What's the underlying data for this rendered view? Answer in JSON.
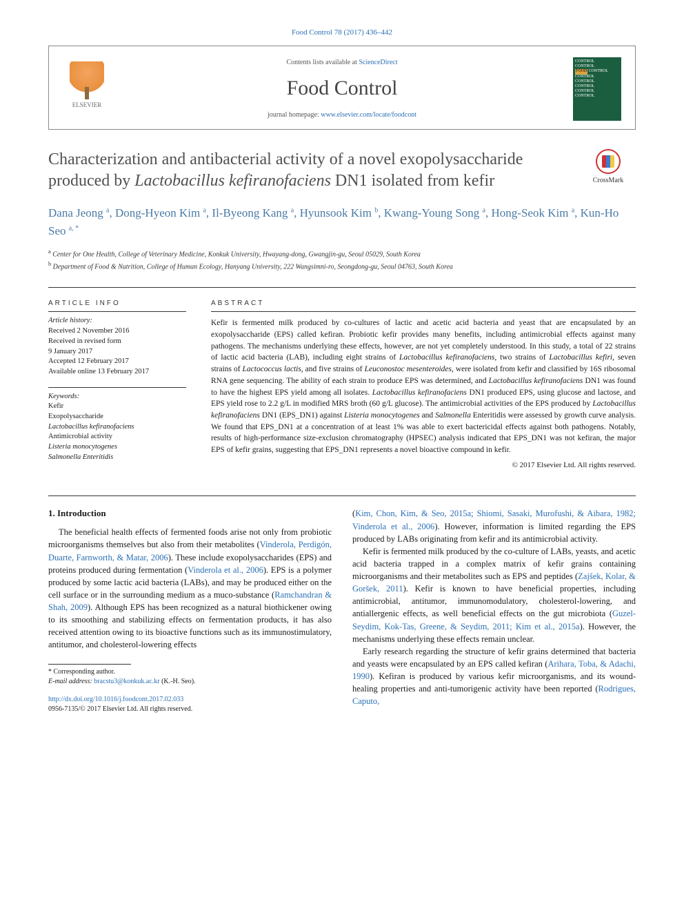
{
  "journal_ref": "Food Control 78 (2017) 436–442",
  "masthead": {
    "contents": "Contents lists available at ",
    "sciencedirect": "ScienceDirect",
    "journal_name": "Food Control",
    "homepage_label": "journal homepage: ",
    "homepage_url": "www.elsevier.com/locate/foodcont",
    "publisher": "ELSEVIER"
  },
  "cover": {
    "lines": [
      "CONTROL",
      "CONTROL",
      "FOOD CONTROL",
      "CONTROL",
      "CONTROL",
      "CONTROL",
      "CONTROL",
      "CONTROL"
    ]
  },
  "title_html": "Characterization and antibacterial activity of a novel exopolysaccharide produced by <em>Lactobacillus kefiranofaciens</em> DN1 isolated from kefir",
  "crossmark": "CrossMark",
  "authors_html": "Dana Jeong <sup>a</sup>, Dong-Hyeon Kim <sup>a</sup>, Il-Byeong Kang <sup>a</sup>, Hyunsook Kim <sup>b</sup>, Kwang-Young Song <sup>a</sup>, Hong-Seok Kim <sup>a</sup>, Kun-Ho Seo <sup>a, *</sup>",
  "affiliations": [
    {
      "sup": "a",
      "text": "Center for One Health, College of Veterinary Medicine, Konkuk University, Hwayang-dong, Gwangjin-gu, Seoul 05029, South Korea"
    },
    {
      "sup": "b",
      "text": "Department of Food & Nutrition, College of Human Ecology, Hanyang University, 222 Wangsimni-ro, Seongdong-gu, Seoul 04763, South Korea"
    }
  ],
  "article_info_head": "ARTICLE INFO",
  "abstract_head": "ABSTRACT",
  "history": {
    "label": "Article history:",
    "lines": [
      "Received 2 November 2016",
      "Received in revised form",
      "9 January 2017",
      "Accepted 12 February 2017",
      "Available online 13 February 2017"
    ]
  },
  "keywords": {
    "label": "Keywords:",
    "items": [
      "Kefir",
      "Exopolysaccharide",
      "Lactobacillus kefiranofaciens",
      "Antimicrobial activity",
      "Listeria monocytogenes",
      "Salmonella Enteritidis"
    ],
    "italic_idx": [
      2,
      4,
      5
    ]
  },
  "abstract_html": "Kefir is fermented milk produced by co-cultures of lactic and acetic acid bacteria and yeast that are encapsulated by an exopolysaccharide (EPS) called kefiran. Probiotic kefir provides many benefits, including antimicrobial effects against many pathogens. The mechanisms underlying these effects, however, are not yet completely understood. In this study, a total of 22 strains of lactic acid bacteria (LAB), including eight strains of <em>Lactobacillus kefiranofaciens</em>, two strains of <em>Lactobacillus kefiri</em>, seven strains of <em>Lactococcus lactis</em>, and five strains of <em>Leuconostoc mesenteroides</em>, were isolated from kefir and classified by 16S ribosomal RNA gene sequencing. The ability of each strain to produce EPS was determined, and <em>Lactobacillus kefiranofaciens</em> DN1 was found to have the highest EPS yield among all isolates. <em>Lactobacillus kefiranofaciens</em> DN1 produced EPS, using glucose and lactose, and EPS yield rose to 2.2 g/L in modified MRS broth (60 g/L glucose). The antimicrobial activities of the EPS produced by <em>Lactobacillus kefiranofaciens</em> DN1 (EPS_DN1) against <em>Listeria monocytogenes</em> and <em>Salmonella</em> Enteritidis were assessed by growth curve analysis. We found that EPS_DN1 at a concentration of at least 1% was able to exert bactericidal effects against both pathogens. Notably, results of high-performance size-exclusion chromatography (HPSEC) analysis indicated that EPS_DN1 was not kefiran, the major EPS of kefir grains, suggesting that EPS_DN1 represents a novel bioactive compound in kefir.",
  "copyright": "© 2017 Elsevier Ltd. All rights reserved.",
  "section_head": "1. Introduction",
  "col_left_html": "The beneficial health effects of fermented foods arise not only from probiotic microorganisms themselves but also from their metabolites (<span class=\"cite\">Vinderola, Perdigón, Duarte, Farnworth, & Matar, 2006</span>). These include exopolysaccharides (EPS) and proteins produced during fermentation (<span class=\"cite\">Vinderola et al., 2006</span>). EPS is a polymer produced by some lactic acid bacteria (LABs), and may be produced either on the cell surface or in the surrounding medium as a muco-substance (<span class=\"cite\">Ramchandran & Shah, 2009</span>). Although EPS has been recognized as a natural biothickener owing to its smoothing and stabilizing effects on fermentation products, it has also received attention owing to its bioactive functions such as its immunostimulatory, antitumor, and cholesterol-lowering effects",
  "col_right_p1_html": "(<span class=\"cite\">Kim, Chon, Kim, & Seo, 2015a; Shiomi, Sasaki, Murofushi, & Aibara, 1982; Vinderola et al., 2006</span>). However, information is limited regarding the EPS produced by LABs originating from kefir and its antimicrobial activity.",
  "col_right_p2_html": "Kefir is fermented milk produced by the co-culture of LABs, yeasts, and acetic acid bacteria trapped in a complex matrix of kefir grains containing microorganisms and their metabolites such as EPS and peptides (<span class=\"cite\">Zajšek, Kolar, & Goršek, 2011</span>). Kefir is known to have beneficial properties, including antimicrobial, antitumor, immunomodulatory, cholesterol-lowering, and antiallergenic effects, as well beneficial effects on the gut microbiota (<span class=\"cite\">Guzel-Seydim, Kok-Tas, Greene, & Seydim, 2011; Kim et al., 2015a</span>). However, the mechanisms underlying these effects remain unclear.",
  "col_right_p3_html": "Early research regarding the structure of kefir grains determined that bacteria and yeasts were encapsulated by an EPS called kefiran (<span class=\"cite\">Arihara, Toba, & Adachi, 1990</span>). Kefiran is produced by various kefir microorganisms, and its wound-healing properties and anti-tumorigenic activity have been reported (<span class=\"cite\">Rodrigues, Caputo,</span>",
  "footnote": {
    "corr": "* Corresponding author.",
    "email_label": "E-mail address: ",
    "email": "bracstu3@konkuk.ac.kr",
    "email_name": " (K.-H. Seo)."
  },
  "doi": {
    "url": "http://dx.doi.org/10.1016/j.foodcont.2017.02.033",
    "issn": "0956-7135/© 2017 Elsevier Ltd. All rights reserved."
  },
  "colors": {
    "link": "#2a6fb5",
    "author": "#4a7ba6",
    "title": "#505050",
    "cover_bg": "#1b5e3f"
  }
}
